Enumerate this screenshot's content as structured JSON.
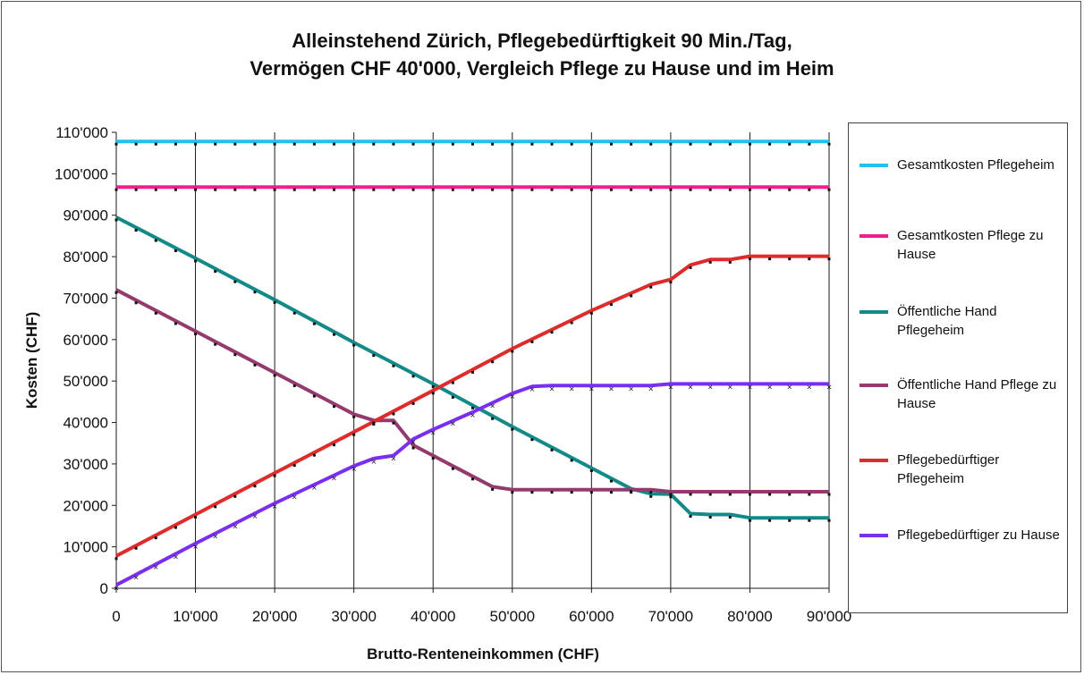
{
  "chart_data": {
    "type": "line",
    "title_line1": "Alleinstehend Zürich, Pflegebedürftigkeit 90 Min./Tag,",
    "title_line2": "Vermögen CHF 40'000, Vergleich Pflege zu Hause und im Heim",
    "xlabel": "Brutto-Renteneinkommen (CHF)",
    "ylabel": "Kosten (CHF)",
    "xlim": [
      0,
      90000
    ],
    "ylim": [
      0,
      110000
    ],
    "xticks": [
      0,
      10000,
      20000,
      30000,
      40000,
      50000,
      60000,
      70000,
      80000,
      90000
    ],
    "xtick_labels": [
      "0",
      "10'000",
      "20'000",
      "30'000",
      "40'000",
      "50'000",
      "60'000",
      "70'000",
      "80'000",
      "90'000"
    ],
    "yticks": [
      0,
      10000,
      20000,
      30000,
      40000,
      50000,
      60000,
      70000,
      80000,
      90000,
      100000,
      110000
    ],
    "ytick_labels": [
      "0",
      "10'000",
      "20'000",
      "30'000",
      "40'000",
      "50'000",
      "60'000",
      "70'000",
      "80'000",
      "90'000",
      "100'000",
      "110'000"
    ],
    "grid": "vertical",
    "legend_position": "right",
    "series": [
      {
        "name": "Gesamtkosten Pflegeheim",
        "color": "#22c0ee",
        "points": [
          [
            0,
            107800
          ],
          [
            90000,
            107800
          ]
        ]
      },
      {
        "name": "Gesamtkosten Pflege zu Hause",
        "color": "#ee1f8a",
        "points": [
          [
            0,
            96800
          ],
          [
            90000,
            96800
          ]
        ]
      },
      {
        "name": "Öffentliche Hand Pflegeheim",
        "color": "#138a88",
        "points": [
          [
            0,
            89500
          ],
          [
            10000,
            79600
          ],
          [
            20000,
            69600
          ],
          [
            30000,
            59300
          ],
          [
            40000,
            49300
          ],
          [
            50000,
            39000
          ],
          [
            60000,
            29000
          ],
          [
            65000,
            24000
          ],
          [
            67500,
            22800
          ],
          [
            70000,
            22700
          ],
          [
            72500,
            18000
          ],
          [
            75000,
            17800
          ],
          [
            77500,
            17800
          ],
          [
            80000,
            17000
          ],
          [
            90000,
            17000
          ]
        ]
      },
      {
        "name": "Öffentliche Hand Pflege zu Hause",
        "color": "#953a6e",
        "points": [
          [
            0,
            72000
          ],
          [
            10000,
            62000
          ],
          [
            20000,
            52000
          ],
          [
            30000,
            42000
          ],
          [
            32500,
            40500
          ],
          [
            35000,
            40500
          ],
          [
            37500,
            34500
          ],
          [
            40000,
            32000
          ],
          [
            45000,
            27000
          ],
          [
            47500,
            24500
          ],
          [
            50000,
            23800
          ],
          [
            60000,
            23800
          ],
          [
            67500,
            23800
          ],
          [
            70000,
            23300
          ],
          [
            90000,
            23300
          ]
        ]
      },
      {
        "name": "Pflegebedürftiger Pflegeheim",
        "color": "#de2c2c",
        "points": [
          [
            0,
            7800
          ],
          [
            10000,
            17800
          ],
          [
            20000,
            27800
          ],
          [
            30000,
            37700
          ],
          [
            40000,
            47700
          ],
          [
            50000,
            57800
          ],
          [
            60000,
            67000
          ],
          [
            67500,
            73300
          ],
          [
            70000,
            74500
          ],
          [
            72500,
            78000
          ],
          [
            75000,
            79300
          ],
          [
            77500,
            79300
          ],
          [
            80000,
            80100
          ],
          [
            90000,
            80100
          ]
        ]
      },
      {
        "name": "Pflegebedürftiger zu Hause",
        "color": "#7a2ef0",
        "points": [
          [
            0,
            800
          ],
          [
            10000,
            10800
          ],
          [
            20000,
            20500
          ],
          [
            30000,
            29500
          ],
          [
            32500,
            31300
          ],
          [
            35000,
            32000
          ],
          [
            37500,
            36000
          ],
          [
            40000,
            38300
          ],
          [
            45000,
            42500
          ],
          [
            50000,
            47000
          ],
          [
            52500,
            48700
          ],
          [
            55000,
            48900
          ],
          [
            67500,
            48900
          ],
          [
            70000,
            49300
          ],
          [
            90000,
            49300
          ]
        ]
      }
    ]
  }
}
